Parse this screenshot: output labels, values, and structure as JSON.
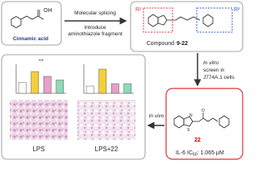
{
  "top": {
    "cinnamic_acid": "Cinnamic acid",
    "arrow_above": "Molecular splicing",
    "arrow_below_1": "Introduce",
    "arrow_below_2": "aminothiazole fragment",
    "compound_label": "Compound",
    "compound_range": "9-22",
    "r1": "R¹",
    "r2": "R²",
    "acid_label": "OH"
  },
  "screen": {
    "in_vitro": "In vitro",
    "line_2": "screen in",
    "line_3": "J774A.1 cells"
  },
  "in_vivo": "In vivo",
  "hit": {
    "id": "22",
    "ic50_prefix": "IL-6 IC",
    "ic50_sub": "50",
    "ic50_value": ": 1.065 μM",
    "atom_s": "S",
    "atom_n": "N",
    "atom_o": "O"
  },
  "histology": {
    "left": "LPS",
    "right": "LPS+22"
  },
  "chart_data": [
    {
      "type": "bar",
      "title": "H/E",
      "values": [
        4.5,
        9,
        7,
        5.5
      ],
      "colors": [
        "#ffffff",
        "#f3cf3e",
        "#e8a0c8",
        "#8fd8b8"
      ],
      "ylim": [
        0,
        12
      ]
    },
    {
      "type": "bar",
      "values": [
        3,
        10,
        4,
        4
      ],
      "colors": [
        "#ffffff",
        "#f3cf3e",
        "#e8a0c8",
        "#8fd8b8"
      ],
      "ylim": [
        0,
        12
      ]
    }
  ]
}
